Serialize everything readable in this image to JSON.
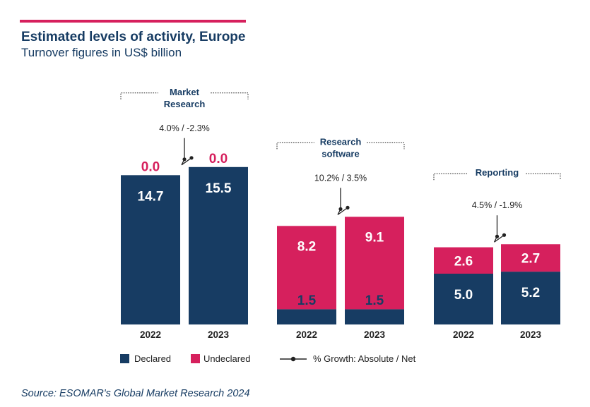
{
  "colors": {
    "declared": "#173c63",
    "undeclared": "#d6205d",
    "accent_bar": "#d6205d",
    "title": "#173c63",
    "text": "#222222",
    "growth_line": "#222222",
    "on_bar_text": "#ffffff",
    "on_bar_dark_text": "#173c63"
  },
  "icons": {
    "growth_marker": "dot-line-icon"
  },
  "header": {
    "title": "Estimated levels of activity, Europe",
    "subtitle": "Turnover figures in US$ billion"
  },
  "legend": {
    "declared": "Declared",
    "undeclared": "Undeclared",
    "growth": "% Growth: Absolute / Net"
  },
  "source": "Source: ESOMAR's Global Market Research 2024",
  "chart_data": {
    "type": "bar",
    "stacked": true,
    "grid": false,
    "legend_placement": "bottom",
    "series_names": [
      "Declared",
      "Undeclared"
    ],
    "groups": [
      {
        "label_lines": [
          "Market",
          "Research"
        ],
        "growth": "4.0% / -2.3%",
        "categories": [
          "2022",
          "2023"
        ],
        "declared": [
          14.7,
          15.5
        ],
        "undeclared": [
          0.0,
          0.0
        ],
        "declared_labels": [
          "14.7",
          "15.5"
        ],
        "undeclared_labels": [
          "0.0",
          "0.0"
        ]
      },
      {
        "label_lines": [
          "Research",
          "software"
        ],
        "growth": "10.2% / 3.5%",
        "categories": [
          "2022",
          "2023"
        ],
        "declared": [
          1.5,
          1.5
        ],
        "undeclared": [
          8.2,
          9.1
        ],
        "declared_labels": [
          "1.5",
          "1.5"
        ],
        "undeclared_labels": [
          "8.2",
          "9.1"
        ]
      },
      {
        "label_lines": [
          "Reporting"
        ],
        "growth": "4.5% / -1.9%",
        "categories": [
          "2022",
          "2023"
        ],
        "declared": [
          5.0,
          5.2
        ],
        "undeclared": [
          2.6,
          2.7
        ],
        "declared_labels": [
          "5.0",
          "5.2"
        ],
        "undeclared_labels": [
          "2.6",
          "2.7"
        ]
      }
    ]
  }
}
